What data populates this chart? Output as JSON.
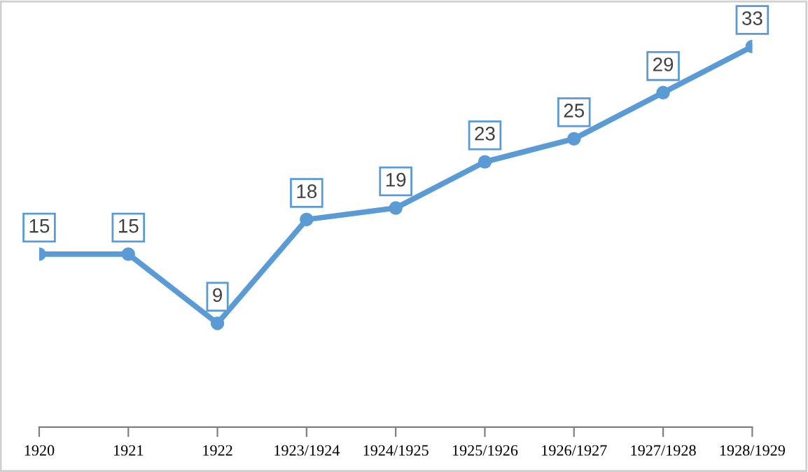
{
  "chart_data": {
    "type": "line",
    "categories": [
      "1920",
      "1921",
      "1922",
      "1923/1924",
      "1924/1925",
      "1925/1926",
      "1926/1927",
      "1927/1928",
      "1928/1929"
    ],
    "series": [
      {
        "color": "#5b9bd5",
        "values": [
          15,
          15,
          9,
          18,
          19,
          23,
          25,
          29,
          33
        ]
      }
    ],
    "data_labels": true,
    "marker": "circle",
    "line_style": "solid",
    "grid": false,
    "legend": false,
    "tick_labels": "x"
  }
}
